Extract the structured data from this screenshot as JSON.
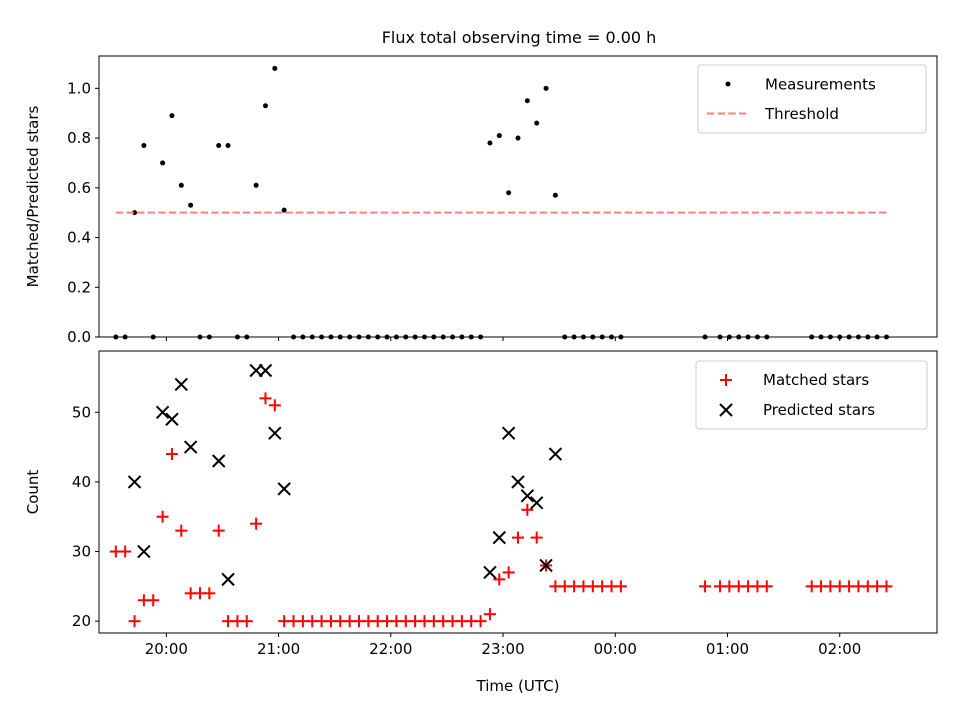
{
  "figure": {
    "title": "Flux total observing time = 0.00 h"
  },
  "chart_data": [
    {
      "type": "scatter",
      "xlabel": "",
      "ylabel": "Matched/Predicted stars",
      "xlim": [
        "19:24",
        "02:52"
      ],
      "ylim": [
        0.0,
        1.13
      ],
      "yticks": [
        0.0,
        0.2,
        0.4,
        0.6,
        0.8,
        1.0
      ],
      "ytick_labels": [
        "0.0",
        "0.2",
        "0.4",
        "0.6",
        "0.8",
        "1.0"
      ],
      "xticks": [
        "20:00",
        "21:00",
        "22:00",
        "23:00",
        "00:00",
        "01:00",
        "02:00"
      ],
      "grid": false,
      "legend": {
        "location": "upper right",
        "entries": [
          {
            "label": "Measurements",
            "marker": "dot",
            "color": "#000000"
          },
          {
            "label": "Threshold",
            "marker": "dashed-line",
            "color": "#ff7f7f"
          }
        ]
      },
      "series": [
        {
          "name": "Measurements",
          "color": "#000000",
          "points": [
            [
              "19:33",
              0.0
            ],
            [
              "19:38",
              0.0
            ],
            [
              "19:43",
              0.5
            ],
            [
              "19:48",
              0.77
            ],
            [
              "19:53",
              0.0
            ],
            [
              "19:58",
              0.7
            ],
            [
              "20:03",
              0.89
            ],
            [
              "20:08",
              0.61
            ],
            [
              "20:13",
              0.53
            ],
            [
              "20:18",
              0.0
            ],
            [
              "20:23",
              0.0
            ],
            [
              "20:28",
              0.77
            ],
            [
              "20:33",
              0.77
            ],
            [
              "20:38",
              0.0
            ],
            [
              "20:43",
              0.0
            ],
            [
              "20:48",
              0.61
            ],
            [
              "20:53",
              0.93
            ],
            [
              "20:58",
              1.08
            ],
            [
              "21:03",
              0.51
            ],
            [
              "21:08",
              0.0
            ],
            [
              "21:13",
              0.0
            ],
            [
              "21:18",
              0.0
            ],
            [
              "21:23",
              0.0
            ],
            [
              "21:28",
              0.0
            ],
            [
              "21:33",
              0.0
            ],
            [
              "21:38",
              0.0
            ],
            [
              "21:43",
              0.0
            ],
            [
              "21:48",
              0.0
            ],
            [
              "21:53",
              0.0
            ],
            [
              "21:58",
              0.0
            ],
            [
              "22:03",
              0.0
            ],
            [
              "22:08",
              0.0
            ],
            [
              "22:13",
              0.0
            ],
            [
              "22:18",
              0.0
            ],
            [
              "22:23",
              0.0
            ],
            [
              "22:28",
              0.0
            ],
            [
              "22:33",
              0.0
            ],
            [
              "22:38",
              0.0
            ],
            [
              "22:43",
              0.0
            ],
            [
              "22:48",
              0.0
            ],
            [
              "22:53",
              0.78
            ],
            [
              "22:58",
              0.81
            ],
            [
              "23:03",
              0.58
            ],
            [
              "23:08",
              0.8
            ],
            [
              "23:13",
              0.95
            ],
            [
              "23:18",
              0.86
            ],
            [
              "23:23",
              1.0
            ],
            [
              "23:28",
              0.57
            ],
            [
              "23:33",
              0.0
            ],
            [
              "23:38",
              0.0
            ],
            [
              "23:43",
              0.0
            ],
            [
              "23:48",
              0.0
            ],
            [
              "23:53",
              0.0
            ],
            [
              "23:58",
              0.0
            ],
            [
              "00:03",
              0.0
            ],
            [
              "00:48",
              0.0
            ],
            [
              "00:56",
              0.0
            ],
            [
              "01:01",
              0.0
            ],
            [
              "01:06",
              0.0
            ],
            [
              "01:11",
              0.0
            ],
            [
              "01:16",
              0.0
            ],
            [
              "01:21",
              0.0
            ],
            [
              "01:45",
              0.0
            ],
            [
              "01:50",
              0.0
            ],
            [
              "01:55",
              0.0
            ],
            [
              "02:00",
              0.0
            ],
            [
              "02:05",
              0.0
            ],
            [
              "02:10",
              0.0
            ],
            [
              "02:15",
              0.0
            ],
            [
              "02:20",
              0.0
            ],
            [
              "02:25",
              0.0
            ]
          ]
        },
        {
          "name": "Threshold",
          "color": "#ff7f7f",
          "style": "dashed",
          "points": [
            [
              "19:33",
              0.5
            ],
            [
              "02:25",
              0.5
            ]
          ]
        }
      ]
    },
    {
      "type": "scatter",
      "xlabel": "Time (UTC)",
      "ylabel": "Count",
      "xlim": [
        "19:24",
        "02:52"
      ],
      "ylim": [
        18.3,
        58.8
      ],
      "yticks": [
        20,
        30,
        40,
        50
      ],
      "ytick_labels": [
        "20",
        "30",
        "40",
        "50"
      ],
      "xticks": [
        "20:00",
        "21:00",
        "22:00",
        "23:00",
        "00:00",
        "01:00",
        "02:00"
      ],
      "xtick_labels": [
        "20:00",
        "21:00",
        "22:00",
        "23:00",
        "00:00",
        "01:00",
        "02:00"
      ],
      "grid": false,
      "legend": {
        "location": "upper right",
        "entries": [
          {
            "label": "Matched stars",
            "marker": "plus",
            "color": "#ff0000"
          },
          {
            "label": "Predicted stars",
            "marker": "x",
            "color": "#000000"
          }
        ]
      },
      "series": [
        {
          "name": "Matched stars",
          "color": "#ff0000",
          "points": [
            [
              "19:33",
              30
            ],
            [
              "19:38",
              30
            ],
            [
              "19:43",
              20
            ],
            [
              "19:48",
              23
            ],
            [
              "19:53",
              23
            ],
            [
              "19:58",
              35
            ],
            [
              "20:03",
              44
            ],
            [
              "20:08",
              33
            ],
            [
              "20:13",
              24
            ],
            [
              "20:18",
              24
            ],
            [
              "20:23",
              24
            ],
            [
              "20:28",
              33
            ],
            [
              "20:33",
              20
            ],
            [
              "20:38",
              20
            ],
            [
              "20:43",
              20
            ],
            [
              "20:48",
              34
            ],
            [
              "20:53",
              52
            ],
            [
              "20:58",
              51
            ],
            [
              "21:03",
              20
            ],
            [
              "21:08",
              20
            ],
            [
              "21:13",
              20
            ],
            [
              "21:18",
              20
            ],
            [
              "21:23",
              20
            ],
            [
              "21:28",
              20
            ],
            [
              "21:33",
              20
            ],
            [
              "21:38",
              20
            ],
            [
              "21:43",
              20
            ],
            [
              "21:48",
              20
            ],
            [
              "21:53",
              20
            ],
            [
              "21:58",
              20
            ],
            [
              "22:03",
              20
            ],
            [
              "22:08",
              20
            ],
            [
              "22:13",
              20
            ],
            [
              "22:18",
              20
            ],
            [
              "22:23",
              20
            ],
            [
              "22:28",
              20
            ],
            [
              "22:33",
              20
            ],
            [
              "22:38",
              20
            ],
            [
              "22:43",
              20
            ],
            [
              "22:48",
              20
            ],
            [
              "22:53",
              21
            ],
            [
              "22:58",
              26
            ],
            [
              "23:03",
              27
            ],
            [
              "23:08",
              32
            ],
            [
              "23:13",
              36
            ],
            [
              "23:18",
              32
            ],
            [
              "23:23",
              28
            ],
            [
              "23:28",
              25
            ],
            [
              "23:33",
              25
            ],
            [
              "23:38",
              25
            ],
            [
              "23:43",
              25
            ],
            [
              "23:48",
              25
            ],
            [
              "23:53",
              25
            ],
            [
              "23:58",
              25
            ],
            [
              "00:03",
              25
            ],
            [
              "00:48",
              25
            ],
            [
              "00:56",
              25
            ],
            [
              "01:01",
              25
            ],
            [
              "01:06",
              25
            ],
            [
              "01:11",
              25
            ],
            [
              "01:16",
              25
            ],
            [
              "01:21",
              25
            ],
            [
              "01:45",
              25
            ],
            [
              "01:50",
              25
            ],
            [
              "01:55",
              25
            ],
            [
              "02:00",
              25
            ],
            [
              "02:05",
              25
            ],
            [
              "02:10",
              25
            ],
            [
              "02:15",
              25
            ],
            [
              "02:20",
              25
            ],
            [
              "02:25",
              25
            ]
          ]
        },
        {
          "name": "Predicted stars",
          "color": "#000000",
          "points": [
            [
              "19:43",
              40
            ],
            [
              "19:48",
              30
            ],
            [
              "19:58",
              50
            ],
            [
              "20:03",
              49
            ],
            [
              "20:08",
              54
            ],
            [
              "20:13",
              45
            ],
            [
              "20:28",
              43
            ],
            [
              "20:33",
              26
            ],
            [
              "20:48",
              56
            ],
            [
              "20:53",
              56
            ],
            [
              "20:58",
              47
            ],
            [
              "21:03",
              39
            ],
            [
              "22:53",
              27
            ],
            [
              "22:58",
              32
            ],
            [
              "23:03",
              47
            ],
            [
              "23:08",
              40
            ],
            [
              "23:13",
              38
            ],
            [
              "23:18",
              37
            ],
            [
              "23:23",
              28
            ],
            [
              "23:28",
              44
            ]
          ]
        }
      ]
    }
  ]
}
